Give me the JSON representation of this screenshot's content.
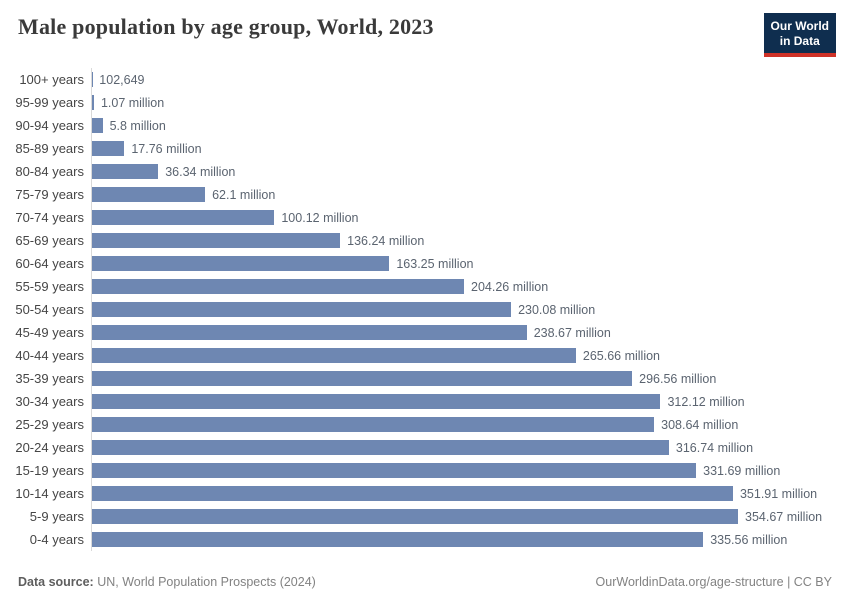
{
  "header": {
    "title": "Male population by age group, World, 2023",
    "logo": {
      "line1": "Our World",
      "line2": "in Data",
      "bg_color": "#0f2e4f",
      "accent_color": "#cf3228"
    }
  },
  "chart_data": {
    "type": "bar",
    "orientation": "horizontal",
    "title": "Male population by age group, World, 2023",
    "year": "2023",
    "entity": "World",
    "bar_color": "#6e87b2",
    "axis_line_color": "#d9d9d9",
    "grid": false,
    "max_value_millions": 354.67,
    "categories": [
      "100+ years",
      "95-99 years",
      "90-94 years",
      "85-89 years",
      "80-84 years",
      "75-79 years",
      "70-74 years",
      "65-69 years",
      "60-64 years",
      "55-59 years",
      "50-54 years",
      "45-49 years",
      "40-44 years",
      "35-39 years",
      "30-34 years",
      "25-29 years",
      "20-24 years",
      "15-19 years",
      "10-14 years",
      "5-9 years",
      "0-4 years"
    ],
    "values_millions": [
      0.102649,
      1.07,
      5.8,
      17.76,
      36.34,
      62.1,
      100.12,
      136.24,
      163.25,
      204.26,
      230.08,
      238.67,
      265.66,
      296.56,
      312.12,
      308.64,
      316.74,
      331.69,
      351.91,
      354.67,
      335.56
    ],
    "value_labels": [
      "102,649",
      "1.07 million",
      "5.8 million",
      "17.76 million",
      "36.34 million",
      "62.1 million",
      "100.12 million",
      "136.24 million",
      "163.25 million",
      "204.26 million",
      "230.08 million",
      "238.67 million",
      "265.66 million",
      "296.56 million",
      "312.12 million",
      "308.64 million",
      "316.74 million",
      "331.69 million",
      "351.91 million",
      "354.67 million",
      "335.56 million"
    ]
  },
  "footer": {
    "source_label": "Data source:",
    "source_text": " UN, World Population Prospects (2024)",
    "credit": "OurWorldinData.org/age-structure | CC BY"
  }
}
